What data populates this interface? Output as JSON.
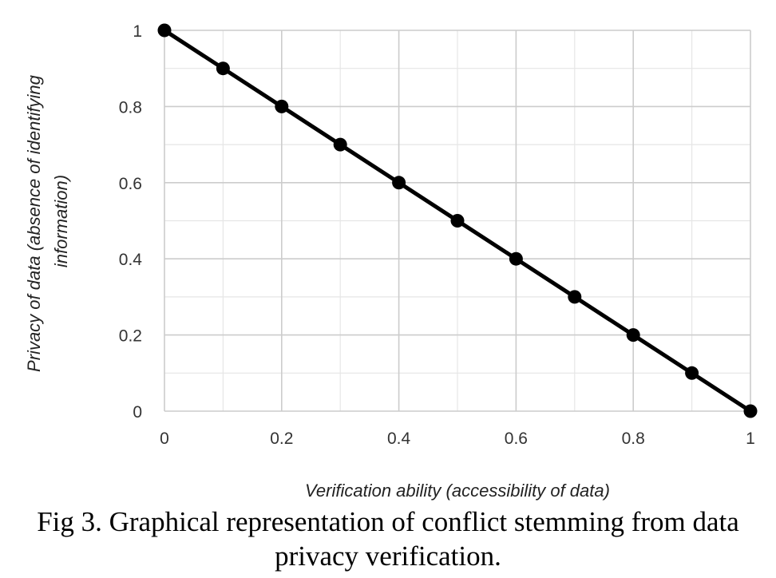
{
  "caption": {
    "line1": "Fig 3. Graphical representation of conflict stemming from data",
    "line2": "privacy verification."
  },
  "chart_data": {
    "type": "line",
    "xlabel": "Verification ability (accessibility of data)",
    "ylabel_lines": [
      "Privacy of data (absence of identifying",
      "information)"
    ],
    "xlim": [
      0,
      1
    ],
    "ylim": [
      0,
      1
    ],
    "x_ticks": [
      0,
      0.2,
      0.4,
      0.6,
      0.8,
      1
    ],
    "y_ticks": [
      0,
      0.2,
      0.4,
      0.6,
      0.8,
      1
    ],
    "x_tick_labels": [
      "0",
      "0.2",
      "0.4",
      "0.6",
      "0.8",
      "1"
    ],
    "y_tick_labels": [
      "0",
      "0.2",
      "0.4",
      "0.6",
      "0.8",
      "1"
    ],
    "grid": true,
    "x": [
      0,
      0.1,
      0.2,
      0.3,
      0.4,
      0.5,
      0.6,
      0.7,
      0.8,
      0.9,
      1
    ],
    "series": [
      {
        "values": [
          1,
          0.9,
          0.8,
          0.7,
          0.6,
          0.5,
          0.4,
          0.3,
          0.2,
          0.1,
          0
        ],
        "color": "#000000",
        "marker": "circle"
      }
    ]
  }
}
